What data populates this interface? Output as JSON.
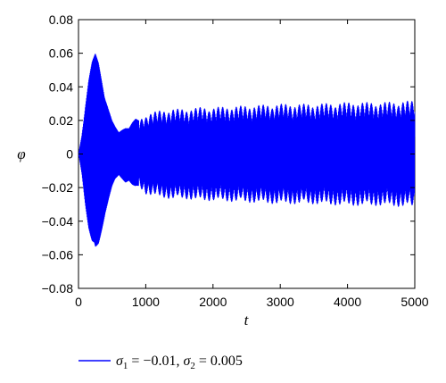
{
  "chart_data": {
    "type": "line",
    "title": "",
    "xlabel": "t",
    "ylabel": "φ",
    "xlim": [
      0,
      5000
    ],
    "ylim": [
      -0.08,
      0.08
    ],
    "xticks": [
      0,
      1000,
      2000,
      3000,
      4000,
      5000
    ],
    "xtick_labels": [
      "0",
      "1000",
      "2000",
      "3000",
      "4000",
      "5000"
    ],
    "yticks": [
      0.08,
      0.06,
      0.04,
      0.02,
      0,
      -0.02,
      -0.04,
      -0.06,
      -0.08
    ],
    "ytick_labels": [
      "0.08",
      "0.06",
      "0.04",
      "0.02",
      "0",
      "−0.02",
      "−0.04",
      "−0.06",
      "−0.08"
    ],
    "grid": false,
    "legend_position": "bottom",
    "series": [
      {
        "name": "σ1 = −0.01, σ2 = 0.005",
        "color": "#0000ff",
        "style": "oscillation envelope (symmetric about 0)",
        "envelope_t": [
          0,
          50,
          100,
          150,
          200,
          250,
          300,
          350,
          400,
          450,
          500,
          550,
          600,
          650,
          700,
          750,
          800,
          850,
          900,
          950,
          1000,
          1100,
          1200,
          1400,
          1600,
          1800,
          2000,
          2500,
          3000,
          3500,
          4000,
          4500,
          5000
        ],
        "envelope_amplitude": [
          0.0,
          0.012,
          0.03,
          0.045,
          0.055,
          0.06,
          0.055,
          0.045,
          0.035,
          0.027,
          0.02,
          0.016,
          0.013,
          0.015,
          0.017,
          0.016,
          0.019,
          0.021,
          0.02,
          0.022,
          0.024,
          0.025,
          0.026,
          0.027,
          0.027,
          0.028,
          0.028,
          0.029,
          0.03,
          0.03,
          0.031,
          0.031,
          0.032
        ]
      }
    ],
    "legend_label_parts": {
      "sigma": "σ",
      "sub1": "1",
      "mid": " = −0.01, ",
      "sub2": "2",
      "end": " = 0.005"
    }
  }
}
